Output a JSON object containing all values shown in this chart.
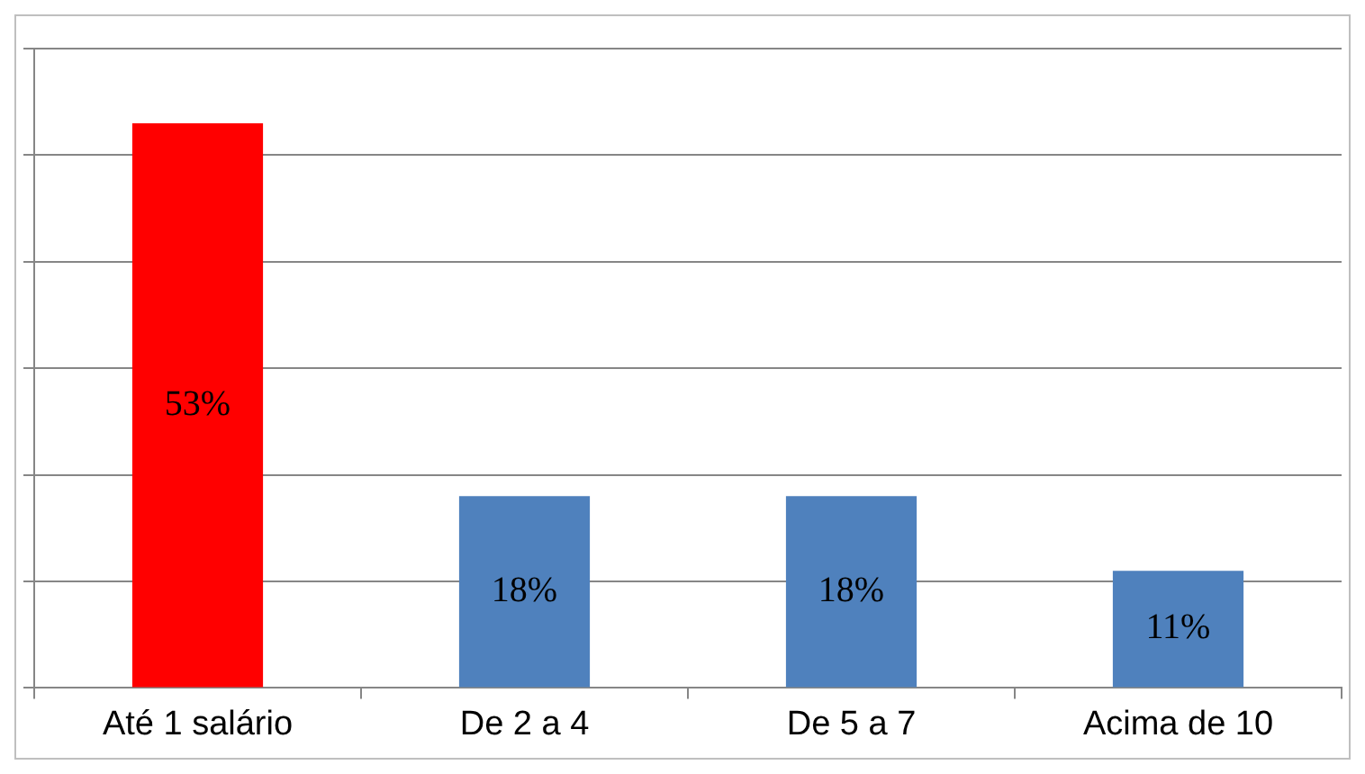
{
  "chart_data": {
    "type": "bar",
    "categories": [
      "Até 1 salário",
      "De 2 a 4",
      "De 5 a 7",
      "Acima de 10"
    ],
    "values": [
      53,
      18,
      18,
      11
    ],
    "colors": [
      "#ff0000",
      "#4f81bd",
      "#4f81bd",
      "#4f81bd"
    ],
    "value_labels": [
      "53%",
      "18%",
      "18%",
      "11%"
    ],
    "ylim": [
      0,
      60
    ],
    "yticks": [
      {
        "value": 0,
        "label": null
      },
      {
        "value": 10,
        "label": null
      },
      {
        "value": 20,
        "label": null
      },
      {
        "value": 30,
        "label": null
      },
      {
        "value": 40,
        "label": null
      },
      {
        "value": 50,
        "label": null
      },
      {
        "value": 60,
        "label": null
      }
    ],
    "grid": "y",
    "tick_labels": "x",
    "legend": false
  }
}
